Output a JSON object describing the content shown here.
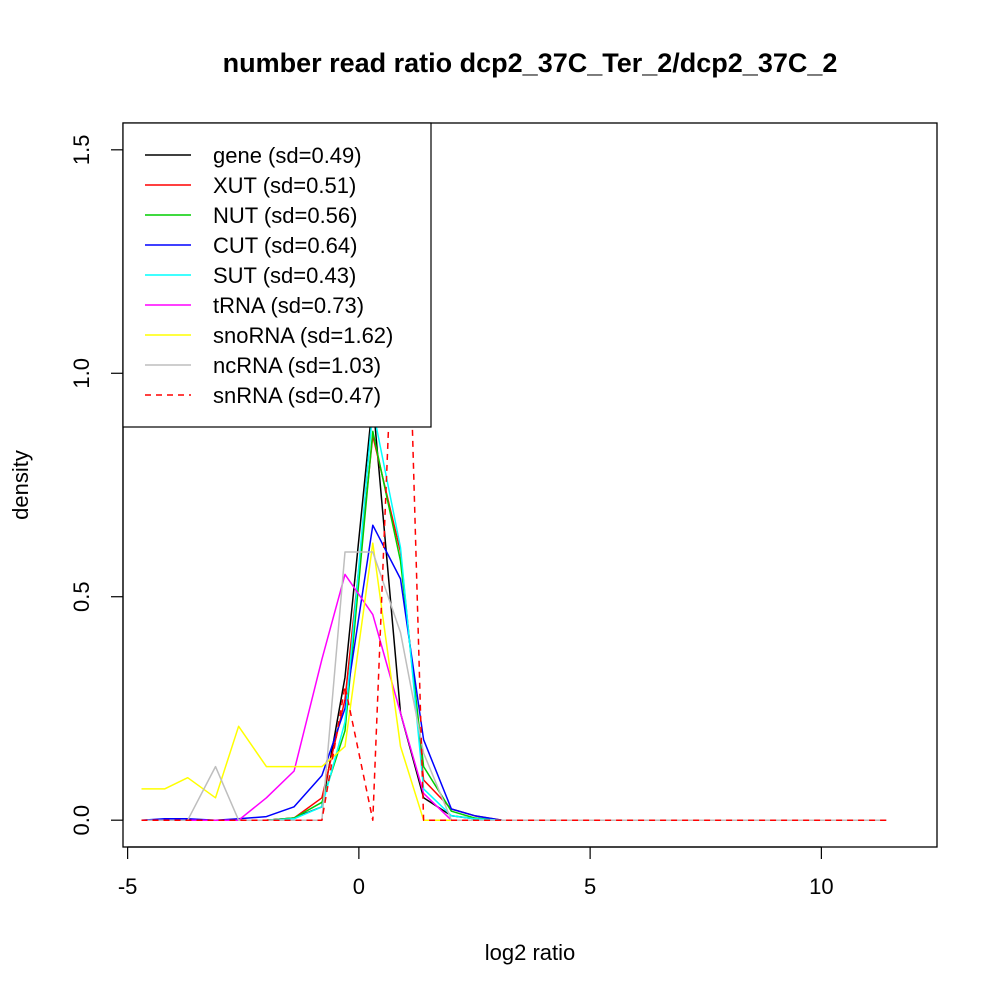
{
  "chart_data": {
    "type": "line",
    "title": "number read ratio dcp2_37C_Ter_2/dcp2_37C_2",
    "xlabel": "log2 ratio",
    "ylabel": "density",
    "xlim": [
      -5.1,
      12.5
    ],
    "ylim": [
      -0.06,
      1.56
    ],
    "xticks": [
      -5,
      0,
      5,
      10
    ],
    "xtick_labels": [
      "-5",
      "0",
      "5",
      "10"
    ],
    "yticks": [
      0.0,
      0.5,
      1.0,
      1.5
    ],
    "ytick_labels": [
      "0.0",
      "0.5",
      "1.0",
      "1.5"
    ],
    "grid": false,
    "legend_position": "top-left",
    "series": [
      {
        "name": "gene (sd=0.49)",
        "color": "#000000",
        "dash": "solid",
        "x": [
          -4.7,
          -4.2,
          -3.7,
          -3.1,
          -2.6,
          -2.0,
          -1.4,
          -0.8,
          -0.3,
          0.3,
          0.9,
          1.4,
          2.0,
          2.5,
          3.1,
          3.6,
          4.0,
          11.4
        ],
        "y": [
          0.0,
          0.0,
          0.0,
          0.0,
          0.0,
          0.0,
          0.005,
          0.03,
          0.32,
          0.94,
          0.24,
          0.05,
          0.01,
          0.003,
          0.0,
          0.0,
          0.0,
          0.0
        ]
      },
      {
        "name": "XUT (sd=0.51)",
        "color": "#ff0000",
        "dash": "solid",
        "x": [
          -4.7,
          -4.2,
          -3.7,
          -3.1,
          -2.6,
          -2.0,
          -1.4,
          -0.8,
          -0.3,
          0.3,
          0.9,
          1.4,
          2.0,
          2.5,
          3.1,
          3.6,
          4.0,
          11.4
        ],
        "y": [
          0.0,
          0.0,
          0.0,
          0.0,
          0.0,
          0.0,
          0.005,
          0.05,
          0.27,
          0.86,
          0.6,
          0.09,
          0.025,
          0.01,
          0.0,
          0.0,
          0.0,
          0.0
        ]
      },
      {
        "name": "NUT (sd=0.56)",
        "color": "#00cd00",
        "dash": "solid",
        "x": [
          -4.7,
          -4.2,
          -3.7,
          -3.1,
          -2.6,
          -2.0,
          -1.4,
          -0.8,
          -0.3,
          0.3,
          0.9,
          1.4,
          2.0,
          2.5,
          3.1,
          3.6,
          4.0,
          11.4
        ],
        "y": [
          0.0,
          0.0,
          0.0,
          0.0,
          0.0,
          0.0,
          0.005,
          0.04,
          0.2,
          0.87,
          0.58,
          0.12,
          0.02,
          0.005,
          0.0,
          0.0,
          0.0,
          0.0
        ]
      },
      {
        "name": "CUT (sd=0.64)",
        "color": "#0000ff",
        "dash": "solid",
        "x": [
          -4.7,
          -4.2,
          -3.7,
          -3.1,
          -2.6,
          -2.0,
          -1.4,
          -0.8,
          -0.3,
          0.3,
          0.9,
          1.4,
          2.0,
          2.5,
          3.1,
          3.6,
          4.0,
          11.4
        ],
        "y": [
          0.0,
          0.003,
          0.003,
          0.0,
          0.003,
          0.008,
          0.03,
          0.1,
          0.25,
          0.66,
          0.54,
          0.18,
          0.025,
          0.01,
          0.0,
          0.0,
          0.0,
          0.0
        ]
      },
      {
        "name": "SUT (sd=0.43)",
        "color": "#00ffff",
        "dash": "solid",
        "x": [
          -4.7,
          -4.2,
          -3.7,
          -3.1,
          -2.6,
          -2.0,
          -1.4,
          -0.8,
          -0.3,
          0.3,
          0.9,
          1.4,
          2.0,
          2.5,
          3.1,
          3.6,
          4.0,
          11.4
        ],
        "y": [
          0.0,
          0.0,
          0.0,
          0.0,
          0.0,
          0.0,
          0.003,
          0.03,
          0.22,
          0.92,
          0.61,
          0.07,
          0.01,
          0.003,
          0.0,
          0.0,
          0.0,
          0.0
        ]
      },
      {
        "name": "tRNA (sd=0.73)",
        "color": "#ff00ff",
        "dash": "solid",
        "x": [
          -4.7,
          -4.2,
          -3.7,
          -3.1,
          -2.6,
          -2.0,
          -1.4,
          -0.8,
          -0.3,
          0.3,
          0.9,
          1.4,
          2.0,
          2.5,
          3.1,
          3.6,
          4.0,
          11.4
        ],
        "y": [
          0.0,
          0.0,
          0.0,
          0.0,
          0.0,
          0.05,
          0.11,
          0.36,
          0.55,
          0.46,
          0.24,
          0.06,
          0.0,
          0.0,
          0.0,
          0.0,
          0.0,
          0.0
        ]
      },
      {
        "name": "snoRNA (sd=1.62)",
        "color": "#ffff00",
        "dash": "solid",
        "x": [
          -4.7,
          -4.2,
          -3.7,
          -3.1,
          -2.6,
          -2.0,
          -1.4,
          -0.8,
          -0.3,
          0.3,
          0.9,
          1.4,
          2.0,
          2.5,
          3.1,
          3.6,
          4.0,
          11.4
        ],
        "y": [
          0.07,
          0.07,
          0.095,
          0.05,
          0.21,
          0.12,
          0.12,
          0.12,
          0.165,
          0.62,
          0.165,
          0.0,
          0.0,
          0.0,
          0.0,
          0.0,
          0.0,
          0.0
        ]
      },
      {
        "name": "ncRNA (sd=1.03)",
        "color": "#bebebe",
        "dash": "solid",
        "x": [
          -4.7,
          -4.2,
          -3.7,
          -3.1,
          -2.6,
          -2.0,
          -1.4,
          -0.8,
          -0.3,
          0.3,
          0.9,
          1.4,
          2.0,
          2.5,
          3.1,
          3.6,
          4.0,
          11.4
        ],
        "y": [
          0.0,
          0.0,
          0.0,
          0.12,
          0.0,
          0.0,
          0.0,
          0.0,
          0.6,
          0.6,
          0.42,
          0.15,
          0.0,
          0.0,
          0.0,
          0.0,
          0.0,
          0.0
        ]
      },
      {
        "name": "snRNA (sd=0.47)",
        "color": "#ff0000",
        "dash": "dashed",
        "x": [
          -4.7,
          -4.2,
          -3.7,
          -3.1,
          -2.6,
          -2.0,
          -1.4,
          -0.8,
          -0.3,
          0.3,
          0.65,
          1.15,
          1.4,
          2.0,
          2.5,
          3.1,
          3.6,
          4.0,
          11.4
        ],
        "y": [
          0.0,
          0.0,
          0.0,
          0.0,
          0.0,
          0.0,
          0.0,
          0.0,
          0.3,
          0.0,
          0.9,
          0.9,
          0.0,
          0.0,
          0.0,
          0.0,
          0.0,
          0.0,
          0.0
        ]
      }
    ]
  }
}
